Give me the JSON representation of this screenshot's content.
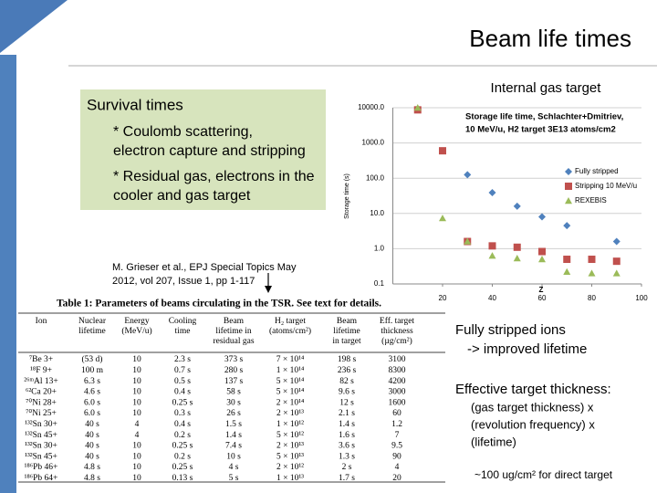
{
  "title": "Beam life times",
  "survival_box": {
    "heading": "Survival times",
    "bullets": [
      [
        "* Coulomb scattering,",
        "electron capture and stripping"
      ],
      [
        "* Residual gas, electrons in the",
        "cooler and gas target"
      ]
    ]
  },
  "reference": [
    "M. Grieser et al., EPJ Special Topics May",
    "2012, vol 207, Issue 1, pp 1-117"
  ],
  "chart_heading": "Internal gas target",
  "chart_data": {
    "type": "scatter",
    "annotation": [
      "Storage life time, Schlachter+Dmitriev,",
      "10 MeV/u, H2 target 3E13 atoms/cm2"
    ],
    "xlabel": "Z",
    "ylabel": "Storage time (s)",
    "x": [
      10,
      20,
      30,
      40,
      50,
      60,
      70,
      80,
      90
    ],
    "series": [
      {
        "name": "Fully stripped",
        "color": "#4f81bd",
        "marker": "diamond",
        "values": [
          null,
          null,
          126,
          39,
          16,
          8,
          4.5,
          null,
          1.6
        ]
      },
      {
        "name": "Stripping 10 MeV/u",
        "color": "#c0504d",
        "marker": "square",
        "values": [
          8700,
          600,
          1.6,
          1.2,
          1.1,
          0.83,
          0.5,
          0.5,
          0.44
        ]
      },
      {
        "name": "REXEBIS",
        "color": "#9bbb59",
        "marker": "triangle",
        "values": [
          10000,
          7.3,
          1.6,
          0.63,
          0.53,
          0.5,
          0.22,
          0.2,
          0.2
        ]
      }
    ],
    "xlim": [
      0,
      100
    ],
    "xticks": [
      20,
      40,
      60,
      80,
      100
    ],
    "ylim": [
      0.1,
      10000
    ],
    "yticks": [
      0.1,
      {
        "value": 1,
        "label": "1.0"
      },
      {
        "value": 10,
        "label": "10.0"
      },
      {
        "value": 100,
        "label": "100.0"
      },
      {
        "value": 1000,
        "label": "1000.0"
      },
      {
        "value": 10000,
        "label": "10000.0"
      }
    ],
    "log_y": true,
    "grid": true,
    "legend": "right"
  },
  "table": {
    "caption": "Table 1: Parameters of beams circulating in the TSR. See text for details.",
    "columns": [
      [
        "Ion"
      ],
      [
        "Nuclear",
        "lifetime"
      ],
      [
        "Energy",
        "(MeV/u)"
      ],
      [
        "Cooling",
        "time"
      ],
      [
        "Beam",
        "lifetime in",
        "residual gas"
      ],
      [
        "H₂ target",
        "(atoms/cm²)"
      ],
      [
        "Beam",
        "lifetime",
        "in target"
      ],
      [
        "Eff. target",
        "thickness",
        "(µg/cm²)"
      ]
    ],
    "rows": [
      [
        "⁷Be 3+",
        "(53 d)",
        "10",
        "2.3 s",
        "373 s",
        "7 × 10¹⁴",
        "198 s",
        "3100"
      ],
      [
        "¹⁸F 9+",
        "100 m",
        "10",
        "0.7 s",
        "280 s",
        "1 × 10¹⁴",
        "236 s",
        "8300"
      ],
      [
        "²⁶ᵐAl 13+",
        "6.3 s",
        "10",
        "0.5 s",
        "137 s",
        "5 × 10¹⁴",
        "82 s",
        "4200"
      ],
      [
        "⁶²Ca 20+",
        "4.6 s",
        "10",
        "0.4 s",
        "58 s",
        "5 × 10¹⁴",
        "9.6 s",
        "3000"
      ],
      [
        "⁷⁰Ni 28+",
        "6.0 s",
        "10",
        "0.25 s",
        "30 s",
        "2 × 10¹⁴",
        "12 s",
        "1600"
      ],
      [
        "⁷⁰Ni 25+",
        "6.0 s",
        "10",
        "0.3 s",
        "26 s",
        "2 × 10¹³",
        "2.1 s",
        "60"
      ],
      [
        "¹³²Sn 30+",
        "40 s",
        "4",
        "0.4 s",
        "1.5 s",
        "1 × 10¹²",
        "1.4 s",
        "1.2"
      ],
      [
        "¹³²Sn 45+",
        "40 s",
        "4",
        "0.2 s",
        "1.4 s",
        "5 × 10¹²",
        "1.6 s",
        "7"
      ],
      [
        "¹³²Sn 30+",
        "40 s",
        "10",
        "0.25 s",
        "7.4 s",
        "2 × 10¹³",
        "3.6 s",
        "9.5"
      ],
      [
        "¹³²Sn 45+",
        "40 s",
        "10",
        "0.2 s",
        "10 s",
        "5 × 10¹³",
        "1.3 s",
        "90"
      ],
      [
        "¹⁸⁶Pb 46+",
        "4.8 s",
        "10",
        "0.25 s",
        "4 s",
        "2 × 10¹²",
        "2 s",
        "4"
      ],
      [
        "¹⁸⁶Pb 64+",
        "4.8 s",
        "10",
        "0.13 s",
        "5 s",
        "1 × 10¹³",
        "1.7 s",
        "20"
      ]
    ]
  },
  "notes": {
    "stripped": [
      "Fully stripped ions",
      "-> improved lifetime"
    ],
    "thickness_heading": "Effective target thickness:",
    "thickness_lines": [
      "(gas target thickness) x",
      "(revolution frequency) x",
      "(lifetime)"
    ],
    "footnote": "~100 ug/cm² for direct target"
  }
}
